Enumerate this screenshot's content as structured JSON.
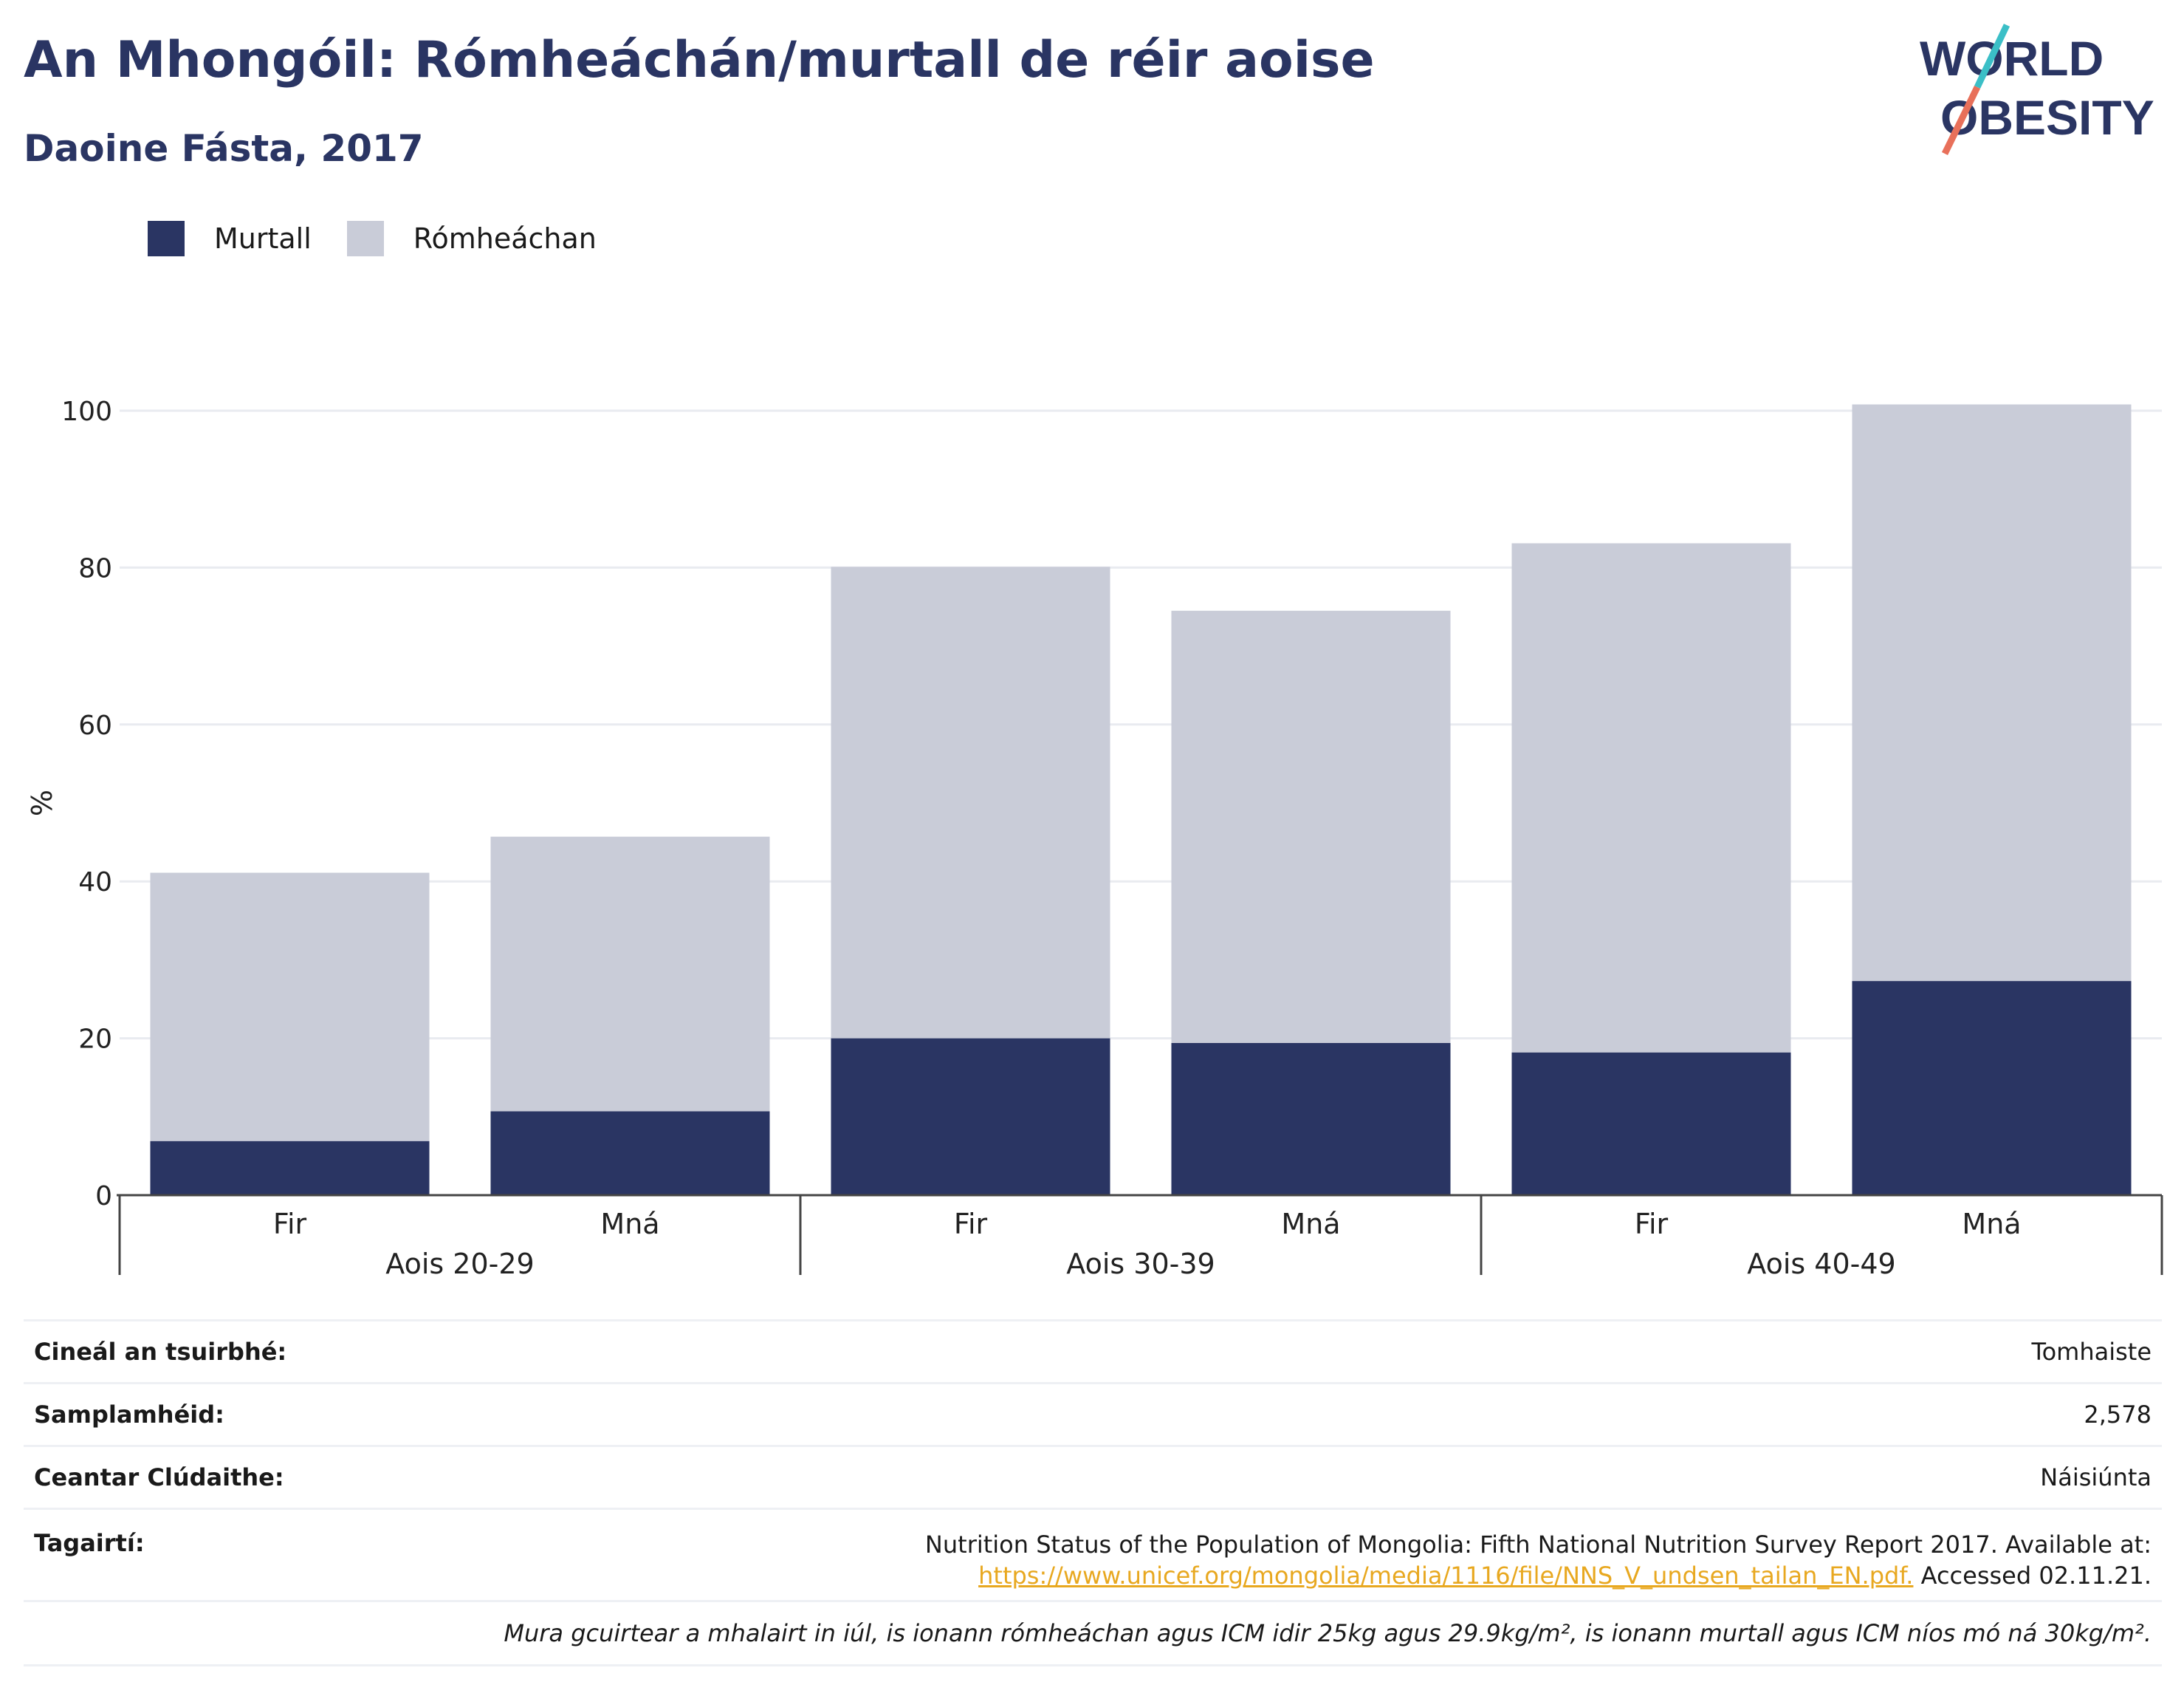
{
  "title": "An Mhongóil: Rómheáchán/murtall de réir aoise",
  "subtitle": "Daoine Fásta, 2017",
  "logo": {
    "line1": "WORLD",
    "line2": "OBESITY"
  },
  "legend": [
    {
      "label": "Murtall",
      "color": "#2a3563"
    },
    {
      "label": "Rómheáchan",
      "color": "#c9ccd8"
    }
  ],
  "chart_data": {
    "type": "bar",
    "stacked": true,
    "ylabel": "%",
    "ylim": [
      0,
      100
    ],
    "yticks": [
      0,
      20,
      40,
      60,
      80,
      100
    ],
    "grid": true,
    "legend_position": "top-left",
    "groups": [
      "Aois 20-29",
      "Aois 30-39",
      "Aois 40-49"
    ],
    "categories": [
      "Fir",
      "Mná",
      "Fir",
      "Mná",
      "Fir",
      "Mná"
    ],
    "series": [
      {
        "name": "Murtall",
        "color": "#2a3563",
        "values": [
          6.9,
          10.7,
          20.0,
          19.4,
          18.2,
          27.3
        ]
      },
      {
        "name": "Rómheáchan",
        "color": "#c9ccd8",
        "values": [
          34.2,
          35.0,
          60.1,
          55.1,
          64.9,
          73.5
        ]
      }
    ]
  },
  "info": {
    "survey_type": {
      "label": "Cineál an tsuirbhé:",
      "value": "Tomhaiste"
    },
    "sample_size": {
      "label": "Samplamhéid:",
      "value": "2,578"
    },
    "coverage": {
      "label": "Ceantar Clúdaithe:",
      "value": "Náisiúnta"
    },
    "references": {
      "label": "Tagairtí:",
      "text": "Nutrition Status of the Population of Mongolia: Fifth National Nutrition Survey Report 2017. Available at:",
      "link": "https://www.unicef.org/mongolia/media/1116/file/NNS_V_undsen_tailan_EN.pdf.",
      "accessed": " Accessed 02.11.21."
    },
    "note": "Mura gcuirtear a mhalairt in iúl, is ionann rómheáchan agus ICM idir 25kg agus 29.9kg/m², is ionann murtall agus ICM níos mó ná 30kg/m²."
  }
}
